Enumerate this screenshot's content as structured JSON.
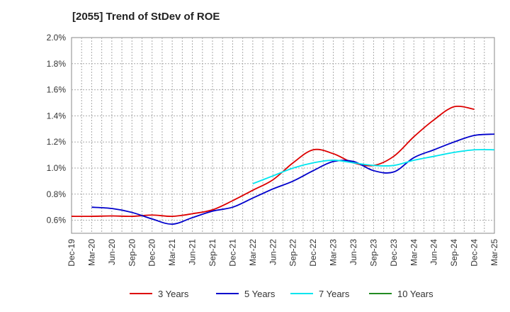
{
  "chart_data": {
    "type": "line",
    "title": "[2055]  Trend of StDev of ROE",
    "xlabel": "",
    "ylabel": "",
    "ylim": [
      0.5,
      2.0
    ],
    "y_ticks": [
      0.6,
      0.8,
      1.0,
      1.2,
      1.4,
      1.6,
      1.8,
      2.0
    ],
    "y_tick_labels": [
      "0.6%",
      "0.8%",
      "1.0%",
      "1.2%",
      "1.4%",
      "1.6%",
      "1.8%",
      "2.0%"
    ],
    "x_tick_labels": [
      "Dec-19",
      "Mar-20",
      "Jun-20",
      "Sep-20",
      "Dec-20",
      "Mar-21",
      "Jun-21",
      "Sep-21",
      "Dec-21",
      "Mar-22",
      "Jun-22",
      "Sep-22",
      "Dec-22",
      "Mar-23",
      "Jun-23",
      "Sep-23",
      "Dec-23",
      "Mar-24",
      "Jun-24",
      "Sep-24",
      "Dec-24",
      "Mar-25"
    ],
    "grid": true,
    "legend_position": "bottom",
    "series": [
      {
        "name": "3 Years",
        "color": "#dd0000",
        "start_index": 0,
        "values": [
          0.63,
          0.63,
          0.633,
          0.63,
          0.64,
          0.63,
          0.65,
          0.68,
          0.75,
          0.83,
          0.91,
          1.04,
          1.14,
          1.11,
          1.04,
          1.02,
          1.09,
          1.24,
          1.37,
          1.47,
          1.45
        ]
      },
      {
        "name": "5 Years",
        "color": "#0000cc",
        "start_index": 1,
        "values": [
          0.7,
          0.69,
          0.66,
          0.61,
          0.57,
          0.62,
          0.67,
          0.7,
          0.77,
          0.84,
          0.9,
          0.98,
          1.05,
          1.05,
          0.98,
          0.97,
          1.08,
          1.14,
          1.2,
          1.25,
          1.26
        ]
      },
      {
        "name": "7 Years",
        "color": "#00e5ee",
        "start_index": 9,
        "values": [
          0.88,
          0.94,
          1.0,
          1.04,
          1.06,
          1.04,
          1.02,
          1.02,
          1.06,
          1.09,
          1.12,
          1.14,
          1.14
        ]
      },
      {
        "name": "10 Years",
        "color": "#228b22",
        "start_index": 0,
        "values": []
      }
    ]
  }
}
